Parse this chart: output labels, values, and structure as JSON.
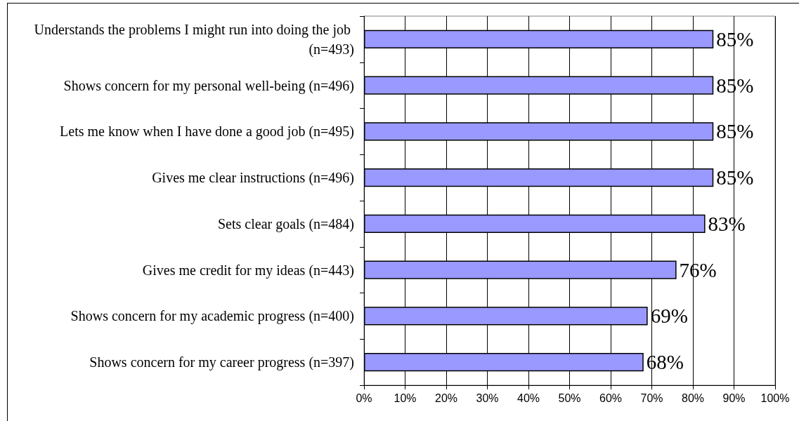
{
  "chart_data": {
    "type": "bar",
    "orientation": "horizontal",
    "categories": [
      "Understands the problems I might run into doing the job (n=493)",
      "Shows concern for my personal well-being (n=496)",
      "Lets me know when I have done a good job (n=495)",
      "Gives me clear instructions (n=496)",
      "Sets clear goals (n=484)",
      "Gives me credit for my ideas (n=443)",
      "Shows concern for my academic progress (n=400)",
      "Shows concern for my career progress (n=397)"
    ],
    "values": [
      85,
      85,
      85,
      85,
      83,
      76,
      69,
      68
    ],
    "value_labels": [
      "85%",
      "85%",
      "85%",
      "85%",
      "83%",
      "76%",
      "69%",
      "68%"
    ],
    "color": "#9999ff",
    "xlim": [
      0,
      100
    ],
    "xticks": [
      {
        "value": 0,
        "label": "0%"
      },
      {
        "value": 10,
        "label": "10%"
      },
      {
        "value": 20,
        "label": "20%"
      },
      {
        "value": 30,
        "label": "30%"
      },
      {
        "value": 40,
        "label": "40%"
      },
      {
        "value": 50,
        "label": "50%"
      },
      {
        "value": 60,
        "label": "60%"
      },
      {
        "value": 70,
        "label": "70%"
      },
      {
        "value": 80,
        "label": "80%"
      },
      {
        "value": 90,
        "label": "90%"
      },
      {
        "value": 100,
        "label": "100%"
      }
    ],
    "grid": "x"
  }
}
